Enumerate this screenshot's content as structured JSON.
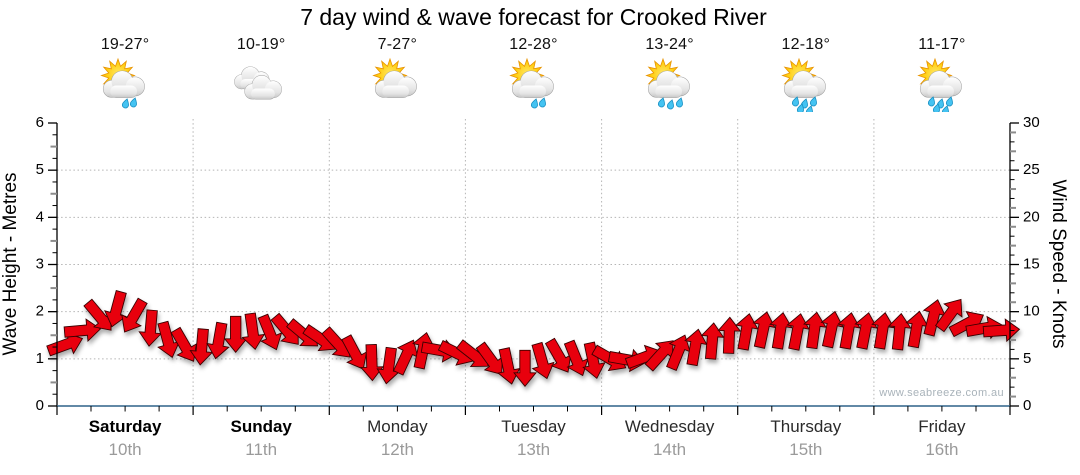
{
  "title": "7 day wind & wave forecast for Crooked River",
  "watermark": "www.seabreeze.com.au",
  "days": [
    {
      "name": "Saturday",
      "date": "10th",
      "temp_range": "19-27°",
      "weekend": true,
      "icon": {
        "name": "sun-cloud-showers",
        "sun": true,
        "clouds": 1,
        "drops": 2
      }
    },
    {
      "name": "Sunday",
      "date": "11th",
      "temp_range": "10-19°",
      "weekend": true,
      "icon": {
        "name": "cloudy",
        "sun": false,
        "clouds": 2,
        "drops": 0
      }
    },
    {
      "name": "Monday",
      "date": "12th",
      "temp_range": "7-27°",
      "weekend": false,
      "icon": {
        "name": "sun-cloud",
        "sun": true,
        "clouds": 1,
        "drops": 0
      }
    },
    {
      "name": "Tuesday",
      "date": "13th",
      "temp_range": "12-28°",
      "weekend": false,
      "icon": {
        "name": "sun-cloud-showers",
        "sun": true,
        "clouds": 1,
        "drops": 2
      }
    },
    {
      "name": "Wednesday",
      "date": "14th",
      "temp_range": "13-24°",
      "weekend": false,
      "icon": {
        "name": "sun-cloud-showers",
        "sun": true,
        "clouds": 1,
        "drops": 3
      }
    },
    {
      "name": "Thursday",
      "date": "15th",
      "temp_range": "12-18°",
      "weekend": false,
      "icon": {
        "name": "sun-cloud-rain",
        "sun": true,
        "clouds": 1,
        "drops": 5
      }
    },
    {
      "name": "Friday",
      "date": "16th",
      "temp_range": "11-17°",
      "weekend": false,
      "icon": {
        "name": "sun-cloud-rain",
        "sun": true,
        "clouds": 1,
        "drops": 5
      }
    }
  ],
  "chart_data": {
    "type": "wind-wave-arrow-band",
    "title": "7 day wind & wave forecast for Crooked River",
    "x_categories": [
      "Saturday 10th",
      "Sunday 11th",
      "Monday 12th",
      "Tuesday 13th",
      "Wednesday 14th",
      "Thursday 15th",
      "Friday 16th"
    ],
    "samples_per_day": 8,
    "left_axis": {
      "label": "Wave Height - Metres",
      "min": 0,
      "max": 6,
      "ticks": [
        0,
        1,
        2,
        3,
        4,
        5,
        6
      ],
      "minor_step": 0.25
    },
    "right_axis": {
      "label": "Wind Speed - Knots",
      "min": 0,
      "max": 30,
      "ticks": [
        0,
        5,
        10,
        15,
        20,
        25,
        30
      ],
      "minor_step": 1
    },
    "grid": {
      "h_lines_m": [
        1,
        2,
        3,
        4,
        5
      ],
      "v_lines": "day-boundaries",
      "style": "dotted"
    },
    "wave_height_m": [
      1.3,
      1.6,
      1.9,
      2.05,
      1.9,
      1.65,
      1.4,
      1.28,
      1.25,
      1.38,
      1.52,
      1.58,
      1.55,
      1.6,
      1.52,
      1.42,
      1.32,
      1.12,
      0.92,
      0.85,
      1.05,
      1.18,
      1.18,
      1.12,
      1.08,
      0.98,
      0.84,
      0.8,
      0.95,
      1.05,
      1.0,
      0.96,
      1.0,
      0.98,
      1.03,
      1.1,
      1.15,
      1.25,
      1.38,
      1.5,
      1.58,
      1.62,
      1.6,
      1.58,
      1.61,
      1.63,
      1.6,
      1.6,
      1.6,
      1.58,
      1.63,
      1.88,
      1.95,
      1.75,
      1.65,
      1.6
    ],
    "wind_dir_deg": [
      70,
      85,
      140,
      195,
      210,
      185,
      165,
      150,
      185,
      190,
      180,
      172,
      158,
      140,
      130,
      124,
      138,
      152,
      178,
      188,
      25,
      12,
      100,
      116,
      128,
      144,
      168,
      180,
      164,
      150,
      158,
      168,
      120,
      100,
      70,
      42,
      22,
      10,
      5,
      2,
      10,
      12,
      9,
      11,
      8,
      12,
      10,
      11,
      9,
      6,
      10,
      14,
      36,
      62,
      80,
      86
    ]
  },
  "colors": {
    "arrow": "#e8000d",
    "arrow_outline": "#3b0000",
    "axis": "#000000",
    "x_axis_line": "#2e6289",
    "grid": "#b5b5b5",
    "date_label": "#9a9a9a",
    "watermark": "#a9b3ba",
    "sun": "#ffc700",
    "cloud": "#d9d9d9",
    "raindrop": "#44c3f2"
  }
}
